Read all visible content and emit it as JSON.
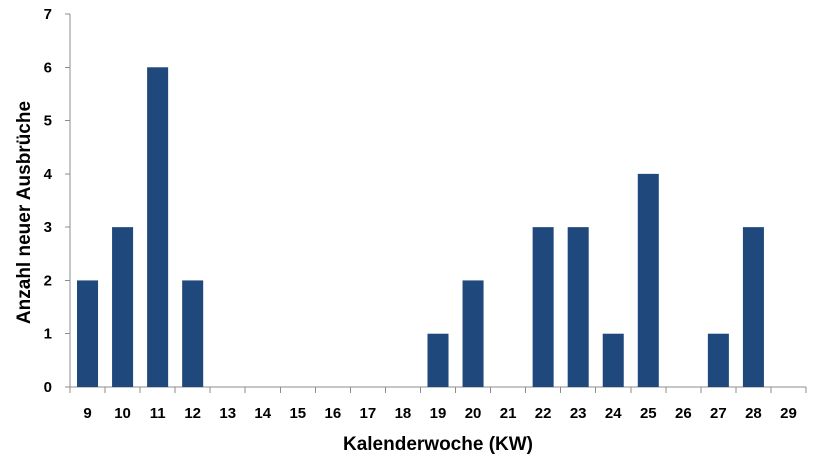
{
  "chart_data": {
    "type": "bar",
    "title": "",
    "xlabel": "Kalenderwoche (KW)",
    "ylabel": "Anzahl neuer Ausbrüche",
    "categories": [
      "9",
      "10",
      "11",
      "12",
      "13",
      "14",
      "15",
      "16",
      "17",
      "18",
      "19",
      "20",
      "21",
      "22",
      "23",
      "24",
      "25",
      "26",
      "27",
      "28",
      "29"
    ],
    "values": [
      2,
      3,
      6,
      2,
      0,
      0,
      0,
      0,
      0,
      0,
      1,
      2,
      0,
      3,
      3,
      1,
      4,
      0,
      1,
      3,
      0
    ],
    "ylim": [
      0,
      7
    ],
    "yticks": [
      0,
      1,
      2,
      3,
      4,
      5,
      6,
      7
    ],
    "grid": false,
    "legend": "none",
    "bar_color": "#1f497d"
  }
}
